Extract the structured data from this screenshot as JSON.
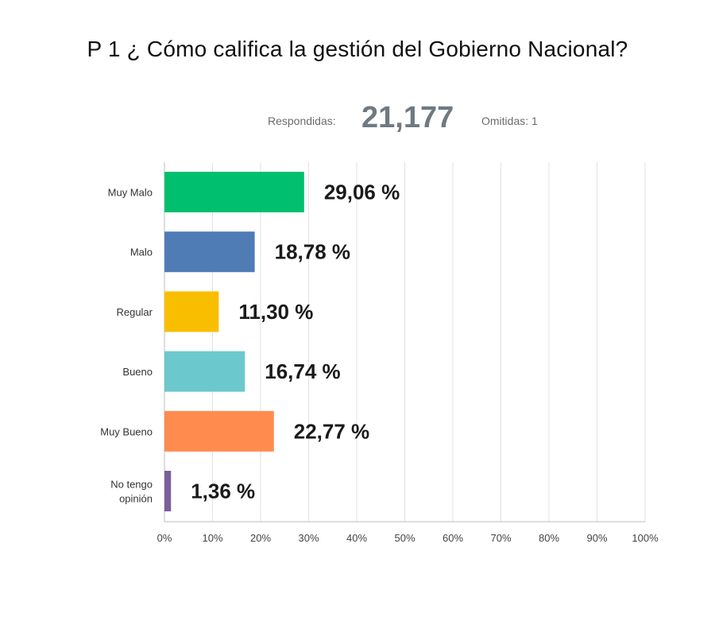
{
  "title": "P 1 ¿ Cómo califica la gestión del Gobierno Nacional?",
  "stats": {
    "answered_label": "Respondidas:",
    "answered_value": "21,177",
    "skipped_label": "Omitidas: 1"
  },
  "chart_data": {
    "type": "bar",
    "orientation": "horizontal",
    "categories": [
      "Muy Malo",
      "Malo",
      "Regular",
      "Bueno",
      "Muy Bueno",
      "No tengo opinión"
    ],
    "values": [
      29.06,
      18.78,
      11.3,
      16.74,
      22.77,
      1.36
    ],
    "value_labels": [
      "29,06 %",
      "18,78 %",
      "11,30 %",
      "16,74 %",
      "22,77 %",
      "1,36 %"
    ],
    "colors": [
      "#00bf6f",
      "#507cb6",
      "#f9be00",
      "#6bc8cd",
      "#ff8b4f",
      "#7d5e9c"
    ],
    "x_ticks": [
      "0%",
      "10%",
      "20%",
      "30%",
      "40%",
      "50%",
      "60%",
      "70%",
      "80%",
      "90%",
      "100%"
    ],
    "xlim": [
      0,
      100
    ],
    "grid": true,
    "legend": "none"
  }
}
